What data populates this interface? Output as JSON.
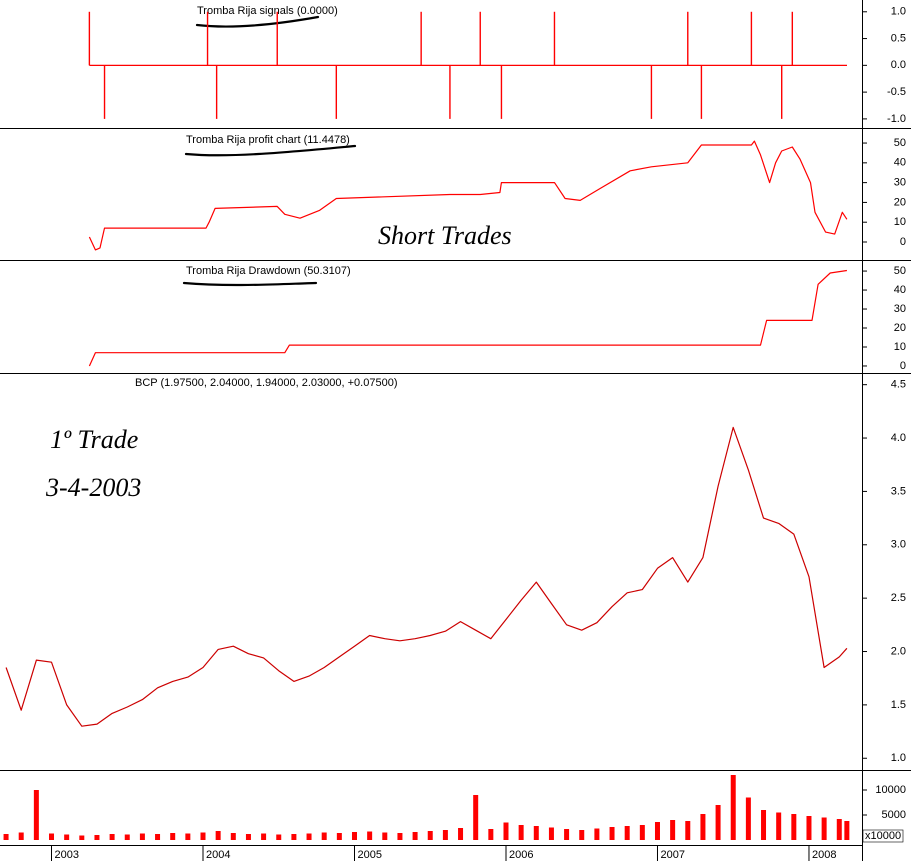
{
  "chart_data": [
    {
      "type": "bar",
      "title": "Tromba Rija signals (0.0000)",
      "x": [
        2003.25,
        2003.35,
        2004.03,
        2004.09,
        2004.49,
        2004.88,
        2005.44,
        2005.63,
        2005.83,
        2005.97,
        2006.32,
        2006.96,
        2007.2,
        2007.29,
        2007.62,
        2007.82,
        2007.89
      ],
      "values": [
        1,
        -1,
        1,
        -1,
        1,
        -1,
        1,
        -1,
        1,
        -1,
        1,
        -1,
        1,
        -1,
        1,
        -1,
        1
      ],
      "color": "#ff0000",
      "xlim": [
        2002.66,
        2008.35
      ],
      "ylim": [
        -1.17,
        1.22
      ],
      "yticks": [
        {
          "value": 1,
          "label": "1.0"
        },
        0.5,
        {
          "value": 0,
          "label": "0.0"
        },
        -0.5,
        {
          "value": -1,
          "label": "-1.0"
        }
      ]
    },
    {
      "type": "line",
      "title": "Tromba Rija profit chart (11.4478)",
      "x": [
        2003.25,
        2003.29,
        2003.32,
        2003.35,
        2004.02,
        2004.04,
        2004.08,
        2004.49,
        2004.54,
        2004.64,
        2004.77,
        2004.88,
        2005.63,
        2005.83,
        2005.96,
        2005.97,
        2006.32,
        2006.39,
        2006.49,
        2006.62,
        2006.82,
        2006.96,
        2007.2,
        2007.29,
        2007.62,
        2007.64,
        2007.68,
        2007.74,
        2007.78,
        2007.82,
        2007.89,
        2007.94,
        2008.01,
        2008.04,
        2008.11,
        2008.17,
        2008.22,
        2008.25
      ],
      "values": [
        2.5,
        -4,
        -3,
        7,
        7,
        10,
        17,
        18,
        14,
        12,
        16,
        22,
        24,
        24,
        25,
        30,
        30,
        22,
        21,
        27,
        36,
        38,
        40,
        49,
        49,
        51,
        44,
        30,
        40,
        46,
        48,
        42,
        30,
        15,
        5,
        4,
        15,
        11.4478
      ],
      "color": "#ff0000",
      "xlim": [
        2002.66,
        2008.35
      ],
      "ylim": [
        -9.1,
        57.1
      ],
      "yticks": [
        50,
        40,
        30,
        20,
        10,
        0
      ],
      "annotations": [
        "Short Trades"
      ]
    },
    {
      "type": "line",
      "title": "Tromba Rija Drawdown (50.3107)",
      "x": [
        2003.25,
        2003.29,
        2004.54,
        2004.57,
        2007.68,
        2007.72,
        2008.02,
        2008.06,
        2008.14,
        2008.25
      ],
      "values": [
        0,
        7,
        7,
        11,
        11,
        24,
        24,
        43,
        49,
        50.3107
      ],
      "color": "#ff0000",
      "xlim": [
        2002.66,
        2008.35
      ],
      "ylim": [
        -3.7,
        55.3
      ],
      "yticks": [
        50,
        40,
        30,
        20,
        10,
        0
      ]
    },
    {
      "type": "line",
      "title": "BCP (1.97500, 2.04000, 1.94000, 2.03000, +0.07500)",
      "x": [
        2002.7,
        2002.8,
        2002.9,
        2003,
        2003.1,
        2003.2,
        2003.3,
        2003.4,
        2003.5,
        2003.6,
        2003.7,
        2003.8,
        2003.9,
        2004,
        2004.1,
        2004.2,
        2004.3,
        2004.4,
        2004.5,
        2004.6,
        2004.7,
        2004.8,
        2004.9,
        2005,
        2005.1,
        2005.2,
        2005.3,
        2005.4,
        2005.5,
        2005.6,
        2005.7,
        2005.8,
        2005.9,
        2006,
        2006.1,
        2006.2,
        2006.3,
        2006.4,
        2006.5,
        2006.6,
        2006.7,
        2006.8,
        2006.9,
        2007,
        2007.1,
        2007.2,
        2007.3,
        2007.4,
        2007.5,
        2007.6,
        2007.7,
        2007.8,
        2007.9,
        2008,
        2008.1,
        2008.2,
        2008.25
      ],
      "values": [
        1.85,
        1.45,
        1.92,
        1.9,
        1.5,
        1.3,
        1.32,
        1.42,
        1.48,
        1.55,
        1.66,
        1.72,
        1.76,
        1.85,
        2.02,
        2.05,
        1.98,
        1.94,
        1.82,
        1.72,
        1.77,
        1.85,
        1.95,
        2.05,
        2.15,
        2.12,
        2.1,
        2.12,
        2.15,
        2.19,
        2.28,
        2.2,
        2.12,
        2.3,
        2.48,
        2.65,
        2.45,
        2.25,
        2.2,
        2.27,
        2.42,
        2.55,
        2.58,
        2.78,
        2.88,
        2.65,
        2.88,
        3.55,
        4.1,
        3.7,
        3.25,
        3.2,
        3.1,
        2.7,
        1.85,
        1.95,
        2.03
      ],
      "color": "#cc0000",
      "xlim": [
        2002.66,
        2008.35
      ],
      "ylim": [
        0.89,
        4.6
      ],
      "yticks": [
        {
          "value": 4.5,
          "label": "4.5"
        },
        {
          "value": 4,
          "label": "4.0"
        },
        3.5,
        {
          "value": 3,
          "label": "3.0"
        },
        2.5,
        {
          "value": 2,
          "label": "2.0"
        },
        1.5,
        {
          "value": 1,
          "label": "1.0"
        }
      ],
      "annotations": [
        "1º Trade",
        "3-4-2003"
      ]
    },
    {
      "type": "bar",
      "unit_label": "x10000",
      "x": [
        2002.7,
        2002.8,
        2002.9,
        2003,
        2003.1,
        2003.2,
        2003.3,
        2003.4,
        2003.5,
        2003.6,
        2003.7,
        2003.8,
        2003.9,
        2004,
        2004.1,
        2004.2,
        2004.3,
        2004.4,
        2004.5,
        2004.6,
        2004.7,
        2004.8,
        2004.9,
        2005,
        2005.1,
        2005.2,
        2005.3,
        2005.4,
        2005.5,
        2005.6,
        2005.7,
        2005.8,
        2005.9,
        2006,
        2006.1,
        2006.2,
        2006.3,
        2006.4,
        2006.5,
        2006.6,
        2006.7,
        2006.8,
        2006.9,
        2007,
        2007.1,
        2007.2,
        2007.3,
        2007.4,
        2007.5,
        2007.6,
        2007.7,
        2007.8,
        2007.9,
        2008,
        2008.1,
        2008.2,
        2008.25
      ],
      "values": [
        1200,
        1500,
        10000,
        1300,
        1100,
        900,
        1000,
        1200,
        1100,
        1300,
        1200,
        1400,
        1300,
        1500,
        1800,
        1400,
        1200,
        1300,
        1100,
        1200,
        1300,
        1500,
        1400,
        1600,
        1700,
        1500,
        1400,
        1600,
        1800,
        2000,
        2400,
        9000,
        2200,
        3500,
        3000,
        2800,
        2500,
        2200,
        2000,
        2300,
        2600,
        2800,
        3000,
        3600,
        4000,
        3800,
        5200,
        7000,
        13000,
        8500,
        6000,
        5500,
        5200,
        4800,
        4500,
        4200,
        3800
      ],
      "color": "#ff0000",
      "xlim": [
        2002.66,
        2008.35
      ],
      "ylim": [
        -1000,
        13800
      ],
      "yticks": [
        10000,
        5000
      ],
      "xticks": [
        2003,
        2004,
        2005,
        2006,
        2007,
        2008
      ]
    }
  ]
}
